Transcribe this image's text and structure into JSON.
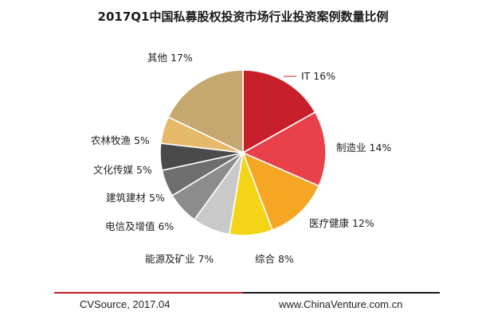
{
  "chart_data": {
    "type": "pie",
    "title": "2017Q1中国私募股权投资市场行业投资案例数量比例",
    "unit": "%",
    "slices": [
      {
        "label": "IT",
        "value": 16,
        "color": "#c8202a"
      },
      {
        "label": "制造业",
        "value": 14,
        "color": "#e8414a"
      },
      {
        "label": "医疗健康",
        "value": 12,
        "color": "#f5a623"
      },
      {
        "label": "综合",
        "value": 8,
        "color": "#f3d416"
      },
      {
        "label": "能源及矿业",
        "value": 7,
        "color": "#c9c9c9"
      },
      {
        "label": "电信及增值",
        "value": 6,
        "color": "#8c8c8c"
      },
      {
        "label": "建筑建材",
        "value": 5,
        "color": "#6e6e6e"
      },
      {
        "label": "文化传媒",
        "value": 5,
        "color": "#4a4a4a"
      },
      {
        "label": "农林牧渔",
        "value": 5,
        "color": "#e6b86a"
      },
      {
        "label": "其他",
        "value": 17,
        "color": "#c5a86f"
      }
    ]
  },
  "footer": {
    "source": "CVSource, 2017.04",
    "site": "www.ChinaVenture.com.cn",
    "accent_color": "#c0202a"
  }
}
